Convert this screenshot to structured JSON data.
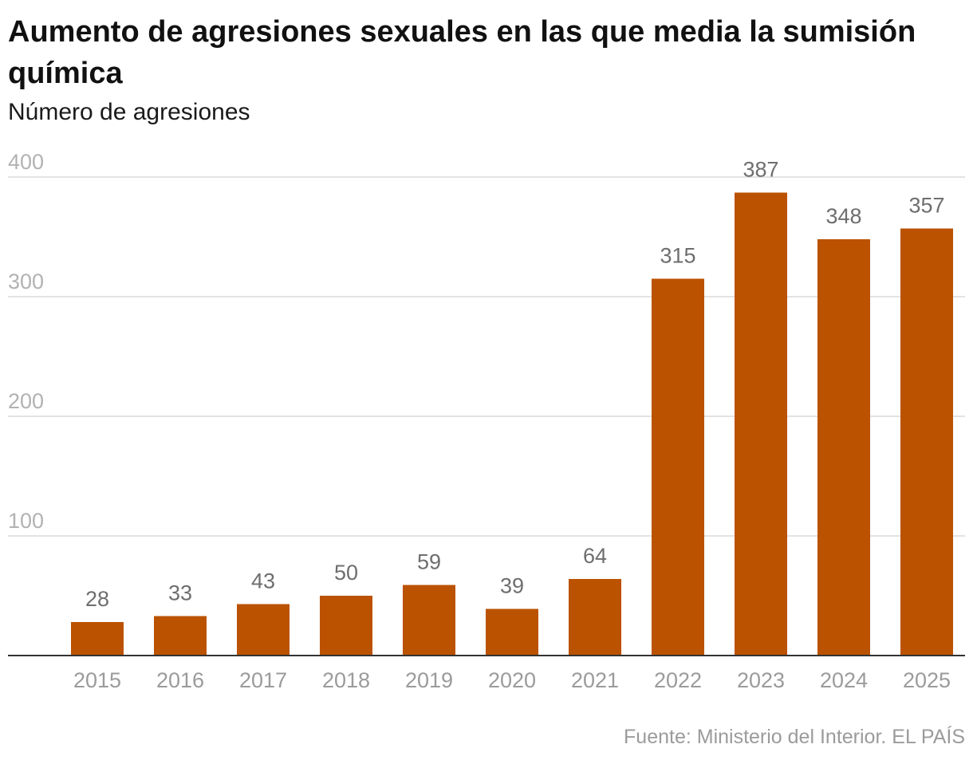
{
  "title": "Aumento de agresiones sexuales en las que media la sumisión química",
  "subtitle": "Número de agresiones",
  "source": "Fuente: Ministerio del Interior. EL PAÍS",
  "colors": {
    "bar": "#bb5200",
    "grid": "#e3e3e3",
    "axis": "#333333"
  },
  "chart_data": {
    "type": "bar",
    "categories": [
      "2015",
      "2016",
      "2017",
      "2018",
      "2019",
      "2020",
      "2021",
      "2022",
      "2023",
      "2024",
      "2025"
    ],
    "values": [
      28,
      33,
      43,
      50,
      59,
      39,
      64,
      315,
      387,
      348,
      357
    ],
    "title": "Aumento de agresiones sexuales en las que media la sumisión química",
    "subtitle": "Número de agresiones",
    "xlabel": "",
    "ylabel": "",
    "ylim": [
      0,
      400
    ],
    "yticks": [
      100,
      200,
      300,
      400
    ],
    "grid": true,
    "legend": "none",
    "data_labels": true
  }
}
